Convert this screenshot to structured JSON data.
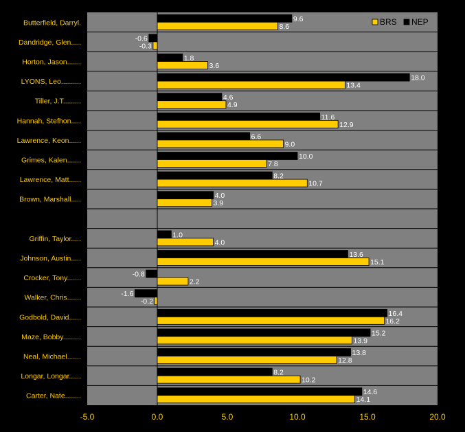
{
  "chart_data": {
    "type": "bar",
    "orientation": "horizontal",
    "categories": [
      "Butterfield, Darryl.",
      "Dandridge, Glen.....",
      "Horton, Jason.......",
      "LYONS, Leo..........",
      "Tiller, J.T.........",
      "Hannah, Stefhon.....",
      "Lawrence, Keon......",
      "Grimes, Kalen.......",
      "Lawrence, Matt......",
      "Brown, Marshall.....",
      "",
      "Griffin, Taylor.....",
      "Johnson, Austin.....",
      "Crocker, Tony.......",
      "Walker, Chris.......",
      "Godbold, David......",
      "Maze, Bobby.........",
      "Neal, Michael.......",
      "Longar, Longar......",
      "Carter, Nate........"
    ],
    "series": [
      {
        "name": "NEP",
        "color": "#000000",
        "values": [
          9.6,
          -0.6,
          1.8,
          18.0,
          4.6,
          11.6,
          6.6,
          10.0,
          8.2,
          4.0,
          null,
          1.0,
          13.6,
          -0.8,
          -1.6,
          16.4,
          15.2,
          13.8,
          8.2,
          14.6
        ],
        "labels": [
          "9.6",
          "-0.6",
          "1.8",
          "18.0",
          "4.6",
          "11.6",
          "6.6",
          "10.0",
          "8.2",
          "4.0",
          "",
          "1.0",
          "13.6",
          "-0.8",
          "-1.6",
          "16.4",
          "15.2",
          "13.8",
          "8.2",
          "14.6"
        ]
      },
      {
        "name": "BRS",
        "color": "#FFCC00",
        "values": [
          8.6,
          -0.3,
          3.6,
          13.4,
          4.9,
          12.9,
          9.0,
          7.8,
          10.7,
          3.9,
          null,
          4.0,
          15.1,
          2.2,
          -0.2,
          16.2,
          13.9,
          12.8,
          10.2,
          14.1
        ],
        "labels": [
          "8.6",
          "-0.3",
          "3.6",
          "13.4",
          "4.9",
          "12.9",
          "9.0",
          "7.8",
          "10.7",
          "3.9",
          "",
          "4.0",
          "15.1",
          "2.2",
          "-0.2",
          "16.2",
          "13.9",
          "12.8",
          "10.2",
          "14.1"
        ]
      }
    ],
    "xlim": [
      -5.0,
      20.0
    ],
    "xticks": [
      -5.0,
      0.0,
      5.0,
      10.0,
      15.0,
      20.0
    ],
    "xtick_labels": [
      "-5.0",
      "0.0",
      "5.0",
      "10.0",
      "15.0",
      "20.0"
    ],
    "legend": {
      "placement": "top-right",
      "entries": [
        "BRS",
        "NEP"
      ]
    },
    "colors": {
      "background": "#000000",
      "plot_area": "#808080",
      "row_separator": "#000000",
      "category_label": "#FFCC00",
      "tick_label": "#FFCC00",
      "value_label": "#FFFFFF"
    },
    "title": "",
    "xlabel": "",
    "ylabel": "",
    "grid": false
  }
}
